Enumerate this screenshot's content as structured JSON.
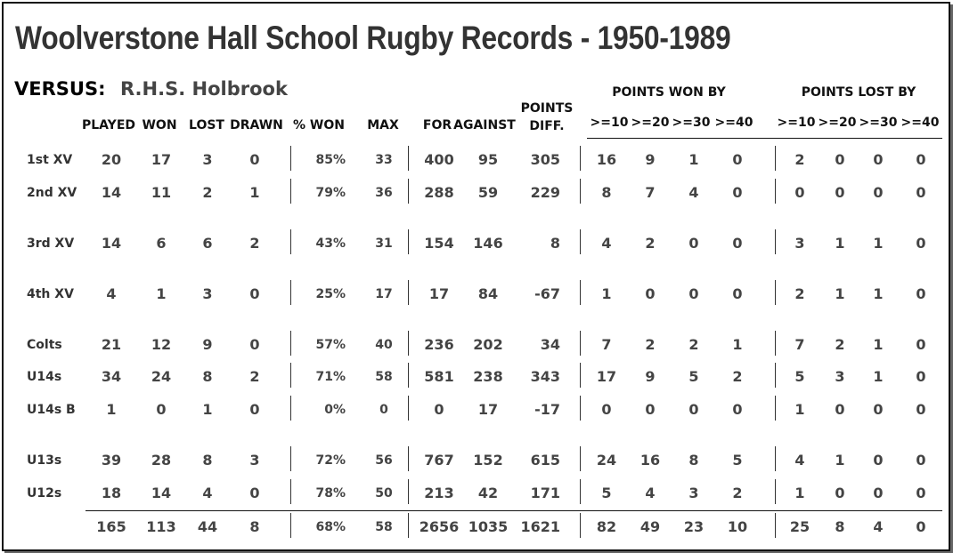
{
  "title": "Woolverstone Hall School Rugby Records - 1950-1989",
  "versus": {
    "label": "VERSUS:",
    "opponent": "R.H.S. Holbrook"
  },
  "group_headers": {
    "won_by": "POINTS WON BY",
    "lost_by": "POINTS LOST BY"
  },
  "columns": {
    "played": "PLAYED",
    "won": "WON",
    "lost": "LOST",
    "drawn": "DRAWN",
    "pct_won": "% WON",
    "max": "MAX",
    "for": "FOR",
    "against": "AGAINST",
    "diff_line1": "POINTS",
    "diff_line2": "DIFF.",
    "w10": ">=10",
    "w20": ">=20",
    "w30": ">=30",
    "w40": ">=40",
    "l10": ">=10",
    "l20": ">=20",
    "l30": ">=30",
    "l40": ">=40"
  },
  "rows": [
    {
      "team": "1st XV",
      "played": "20",
      "won": "17",
      "lost": "3",
      "drawn": "0",
      "pct": "85%",
      "max": "33",
      "for": "400",
      "against": "95",
      "diff": "305",
      "w10": "16",
      "w20": "9",
      "w30": "1",
      "w40": "0",
      "l10": "2",
      "l20": "0",
      "l30": "0",
      "l40": "0"
    },
    {
      "team": "2nd XV",
      "played": "14",
      "won": "11",
      "lost": "2",
      "drawn": "1",
      "pct": "79%",
      "max": "36",
      "for": "288",
      "against": "59",
      "diff": "229",
      "w10": "8",
      "w20": "7",
      "w30": "4",
      "w40": "0",
      "l10": "0",
      "l20": "0",
      "l30": "0",
      "l40": "0"
    },
    {
      "team": "3rd XV",
      "played": "14",
      "won": "6",
      "lost": "6",
      "drawn": "2",
      "pct": "43%",
      "max": "31",
      "for": "154",
      "against": "146",
      "diff": "8",
      "w10": "4",
      "w20": "2",
      "w30": "0",
      "w40": "0",
      "l10": "3",
      "l20": "1",
      "l30": "1",
      "l40": "0"
    },
    {
      "team": "4th XV",
      "played": "4",
      "won": "1",
      "lost": "3",
      "drawn": "0",
      "pct": "25%",
      "max": "17",
      "for": "17",
      "against": "84",
      "diff": "-67",
      "w10": "1",
      "w20": "0",
      "w30": "0",
      "w40": "0",
      "l10": "2",
      "l20": "1",
      "l30": "1",
      "l40": "0"
    },
    {
      "team": "Colts",
      "played": "21",
      "won": "12",
      "lost": "9",
      "drawn": "0",
      "pct": "57%",
      "max": "40",
      "for": "236",
      "against": "202",
      "diff": "34",
      "w10": "7",
      "w20": "2",
      "w30": "2",
      "w40": "1",
      "l10": "7",
      "l20": "2",
      "l30": "1",
      "l40": "0"
    },
    {
      "team": "U14s",
      "played": "34",
      "won": "24",
      "lost": "8",
      "drawn": "2",
      "pct": "71%",
      "max": "58",
      "for": "581",
      "against": "238",
      "diff": "343",
      "w10": "17",
      "w20": "9",
      "w30": "5",
      "w40": "2",
      "l10": "5",
      "l20": "3",
      "l30": "1",
      "l40": "0"
    },
    {
      "team": "U14s B",
      "played": "1",
      "won": "0",
      "lost": "1",
      "drawn": "0",
      "pct": "0%",
      "max": "0",
      "for": "0",
      "against": "17",
      "diff": "-17",
      "w10": "0",
      "w20": "0",
      "w30": "0",
      "w40": "0",
      "l10": "1",
      "l20": "0",
      "l30": "0",
      "l40": "0"
    },
    {
      "team": "U13s",
      "played": "39",
      "won": "28",
      "lost": "8",
      "drawn": "3",
      "pct": "72%",
      "max": "56",
      "for": "767",
      "against": "152",
      "diff": "615",
      "w10": "24",
      "w20": "16",
      "w30": "8",
      "w40": "5",
      "l10": "4",
      "l20": "1",
      "l30": "0",
      "l40": "0"
    },
    {
      "team": "U12s",
      "played": "18",
      "won": "14",
      "lost": "4",
      "drawn": "0",
      "pct": "78%",
      "max": "50",
      "for": "213",
      "against": "42",
      "diff": "171",
      "w10": "5",
      "w20": "4",
      "w30": "3",
      "w40": "2",
      "l10": "1",
      "l20": "0",
      "l30": "0",
      "l40": "0"
    }
  ],
  "totals": {
    "team": "",
    "played": "165",
    "won": "113",
    "lost": "44",
    "drawn": "8",
    "pct": "68%",
    "max": "58",
    "for": "2656",
    "against": "1035",
    "diff": "1621",
    "w10": "82",
    "w20": "49",
    "w30": "23",
    "w40": "10",
    "l10": "25",
    "l20": "8",
    "l30": "4",
    "l40": "0"
  }
}
